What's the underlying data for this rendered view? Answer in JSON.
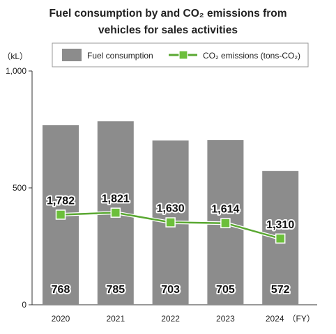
{
  "chart_data": {
    "type": "bar",
    "title": [
      "Fuel consumption by and CO₂ emissions from",
      "vehicles for sales activities"
    ],
    "categories": [
      "2020",
      "2021",
      "2022",
      "2023",
      "2024"
    ],
    "xlabel": "（FY）",
    "ylabel": "（kL）",
    "ylim": [
      0,
      1000
    ],
    "yticks": [
      "0",
      "500",
      "1,000"
    ],
    "legend_position": "top",
    "grid": false,
    "series": [
      {
        "name": "Fuel consumption",
        "kind": "bar",
        "color": "#8c8c8c",
        "values": [
          768,
          785,
          703,
          705,
          572
        ],
        "labels": [
          "768",
          "785",
          "703",
          "705",
          "572"
        ]
      },
      {
        "name": "CO₂ emissions (tons-CO₂)",
        "kind": "line",
        "color": "#6cbf3b",
        "values": [
          1782,
          1821,
          1630,
          1614,
          1310
        ],
        "labels": [
          "1,782",
          "1,821",
          "1,630",
          "1,614",
          "1,310"
        ]
      }
    ]
  }
}
